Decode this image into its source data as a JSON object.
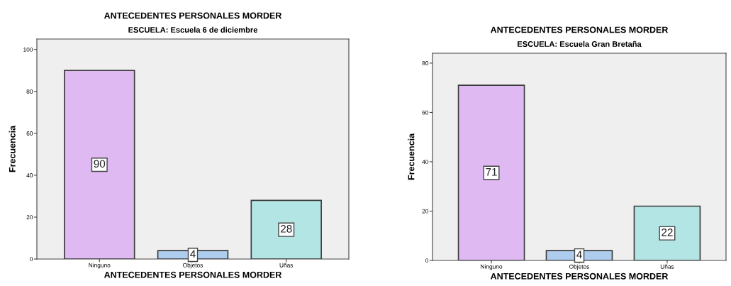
{
  "chart_data": [
    {
      "type": "bar",
      "title": "ANTECEDENTES PERSONALES MORDER",
      "subtitle": "ESCUELA: Escuela 6 de diciembre",
      "xlabel": "ANTECEDENTES PERSONALES MORDER",
      "ylabel": "Frecuencia",
      "categories": [
        "Ninguno",
        "Objetos",
        "Uñas"
      ],
      "values": [
        90,
        4,
        28
      ],
      "colors": [
        "#dfb9f2",
        "#aecdee",
        "#b3e5e5"
      ],
      "ylim": [
        0,
        105
      ],
      "yticks": [
        0,
        20,
        40,
        60,
        80,
        100
      ],
      "data_labels": true,
      "grid": false,
      "legend": false
    },
    {
      "type": "bar",
      "title": "ANTECEDENTES PERSONALES MORDER",
      "subtitle": "ESCUELA: Escuela Gran Bretaña",
      "xlabel": "ANTECEDENTES PERSONALES MORDER",
      "ylabel": "Frecuencia",
      "categories": [
        "Ninguno",
        "Objetos",
        "Uñas"
      ],
      "values": [
        71,
        4,
        22
      ],
      "colors": [
        "#dfb9f2",
        "#aecdee",
        "#b3e5e5"
      ],
      "ylim": [
        0,
        84
      ],
      "yticks": [
        0,
        20,
        40,
        60,
        80
      ],
      "data_labels": true,
      "grid": false,
      "legend": false
    }
  ]
}
